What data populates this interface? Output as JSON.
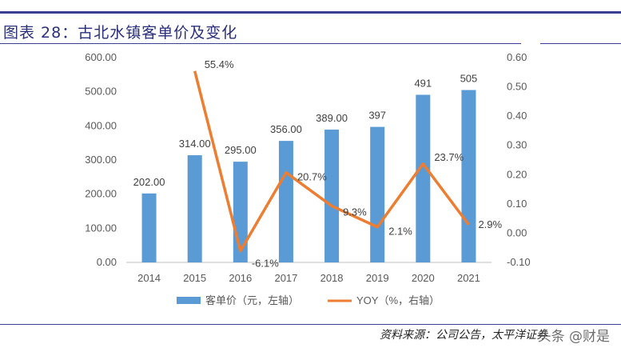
{
  "header": {
    "title": "图表 28：古北水镇客单价及变化"
  },
  "footer": {
    "source": "资料来源：公司公告，太平洋证券",
    "watermark": "头条 @财是"
  },
  "chart_data": {
    "type": "bar",
    "categories": [
      "2014",
      "2015",
      "2016",
      "2017",
      "2018",
      "2019",
      "2020",
      "2021"
    ],
    "series": [
      {
        "name": "客单价（元，左轴）",
        "type": "bar",
        "axis": "left",
        "values": [
          202,
          314,
          295,
          356,
          389,
          397,
          491,
          505
        ],
        "labels": [
          "202.00",
          "314.00",
          "295.00",
          "356.00",
          "389.00",
          "397",
          "491",
          "505"
        ],
        "color": "#5b9bd5"
      },
      {
        "name": "YOY（%，右轴）",
        "type": "line",
        "axis": "right",
        "values": [
          null,
          0.554,
          -0.061,
          0.207,
          0.093,
          0.021,
          0.237,
          0.029
        ],
        "labels": [
          "",
          "55.4%",
          "-6.1%",
          "20.7%",
          "9.3%",
          "2.1%",
          "23.7%",
          "2.9%"
        ],
        "color": "#ed7d31"
      }
    ],
    "y_left": {
      "min": 0,
      "max": 600,
      "ticks": [
        "0.00",
        "100.00",
        "200.00",
        "300.00",
        "400.00",
        "500.00",
        "600.00"
      ]
    },
    "y_right": {
      "min": -0.1,
      "max": 0.6,
      "ticks": [
        "-0.10",
        "0.00",
        "0.10",
        "0.20",
        "0.30",
        "0.40",
        "0.50",
        "0.60"
      ]
    },
    "legend_position": "bottom",
    "grid": false
  }
}
